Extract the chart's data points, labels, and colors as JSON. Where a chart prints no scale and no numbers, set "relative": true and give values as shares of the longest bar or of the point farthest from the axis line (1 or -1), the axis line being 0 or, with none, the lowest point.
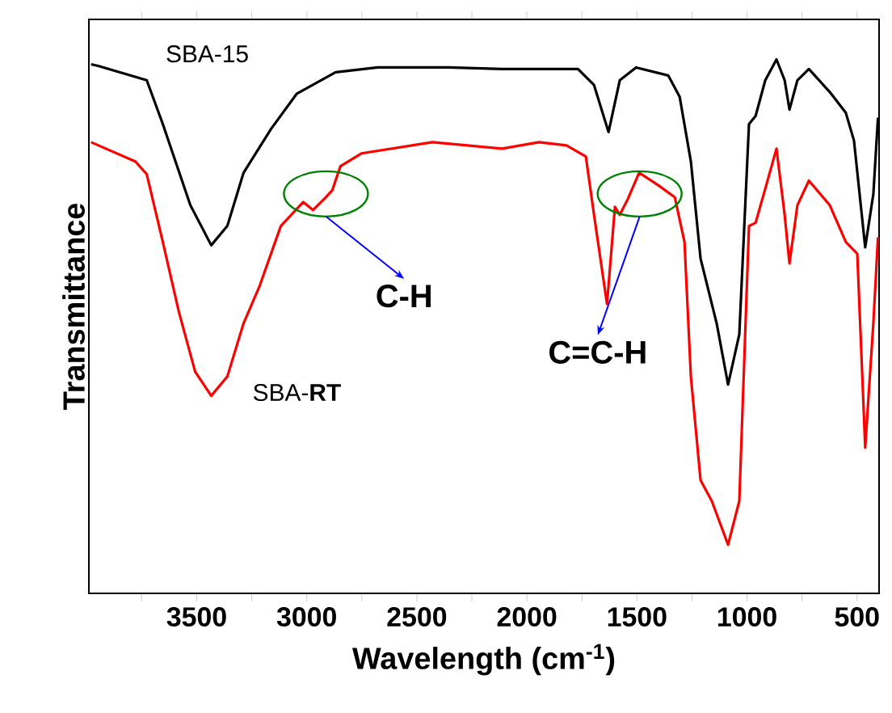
{
  "chart_data": {
    "type": "line",
    "relative": true,
    "xlabel": "Wavelength (cm$^{-1}$)",
    "ylabel": "Transmittance",
    "xlim": [
      3990,
      400
    ],
    "xticks": [
      {
        "value": 3750,
        "label": null
      },
      3500,
      {
        "value": 3250,
        "label": null
      },
      3000,
      {
        "value": 2750,
        "label": null
      },
      2500,
      {
        "value": 2250,
        "label": null
      },
      2000,
      {
        "value": 1750,
        "label": null
      },
      1500,
      {
        "value": 1250,
        "label": null
      },
      1000,
      {
        "value": 750,
        "label": null
      },
      500
    ],
    "grid": false,
    "series": [
      {
        "name": "SBA-15",
        "color": "#000000",
        "x": [
          3980,
          3948,
          3727,
          3654,
          3529,
          3434,
          3361,
          3287,
          3162,
          3045,
          2869,
          2678,
          2355,
          2113,
          1768,
          1695,
          1629,
          1578,
          1504,
          1358,
          1306,
          1255,
          1211,
          1138,
          1086,
          1035,
          991,
          961,
          917,
          866,
          829,
          807,
          771,
          719,
          624,
          551,
          514,
          463,
          426,
          405
        ],
        "values": [
          0.991,
          0.988,
          0.961,
          0.879,
          0.727,
          0.652,
          0.688,
          0.788,
          0.87,
          0.936,
          0.976,
          0.985,
          0.985,
          0.982,
          0.982,
          0.952,
          0.864,
          0.961,
          0.985,
          0.97,
          0.93,
          0.809,
          0.627,
          0.506,
          0.391,
          0.485,
          0.879,
          0.894,
          0.961,
          1.0,
          0.961,
          0.906,
          0.961,
          0.982,
          0.939,
          0.9,
          0.848,
          0.648,
          0.748,
          0.891
        ]
      },
      {
        "name": "SBA-**RT**",
        "color": "#ff0000",
        "x": [
          3980,
          3779,
          3727,
          3654,
          3581,
          3507,
          3434,
          3361,
          3287,
          3214,
          3118,
          3016,
          2972,
          2920,
          2884,
          2847,
          2752,
          2429,
          2113,
          1945,
          1820,
          1732,
          1695,
          1636,
          1600,
          1578,
          1541,
          1490,
          1402,
          1328,
          1284,
          1255,
          1211,
          1160,
          1086,
          1035,
          991,
          961,
          917,
          866,
          829,
          807,
          771,
          719,
          624,
          551,
          499,
          463,
          426,
          405
        ],
        "values": [
          0.845,
          0.809,
          0.785,
          0.658,
          0.527,
          0.415,
          0.37,
          0.406,
          0.506,
          0.576,
          0.688,
          0.733,
          0.718,
          0.739,
          0.755,
          0.8,
          0.824,
          0.845,
          0.833,
          0.845,
          0.839,
          0.818,
          0.709,
          0.542,
          0.724,
          0.709,
          0.739,
          0.788,
          0.764,
          0.742,
          0.658,
          0.406,
          0.212,
          0.173,
          0.091,
          0.173,
          0.688,
          0.694,
          0.758,
          0.833,
          0.709,
          0.618,
          0.727,
          0.773,
          0.727,
          0.658,
          0.636,
          0.273,
          0.506,
          0.667
        ]
      }
    ],
    "annotations": [
      "C-H",
      "C=C-H"
    ]
  }
}
